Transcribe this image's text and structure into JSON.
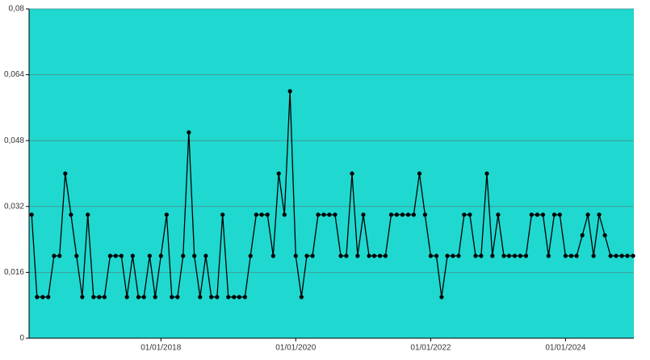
{
  "chart_data": {
    "type": "line",
    "x": [
      "2016-02-01",
      "2016-03-01",
      "2016-04-01",
      "2016-05-01",
      "2016-06-01",
      "2016-07-01",
      "2016-08-01",
      "2016-09-01",
      "2016-10-01",
      "2016-11-01",
      "2016-12-01",
      "2017-01-01",
      "2017-02-01",
      "2017-03-01",
      "2017-04-01",
      "2017-05-01",
      "2017-06-01",
      "2017-07-01",
      "2017-08-01",
      "2017-09-01",
      "2017-10-01",
      "2017-11-01",
      "2017-12-01",
      "2018-01-01",
      "2018-02-01",
      "2018-03-01",
      "2018-04-01",
      "2018-05-01",
      "2018-06-01",
      "2018-07-01",
      "2018-08-01",
      "2018-09-01",
      "2018-10-01",
      "2018-11-01",
      "2018-12-01",
      "2019-01-01",
      "2019-02-01",
      "2019-03-01",
      "2019-04-01",
      "2019-05-01",
      "2019-06-01",
      "2019-07-01",
      "2019-08-01",
      "2019-09-01",
      "2019-10-01",
      "2019-11-01",
      "2019-12-01",
      "2020-01-01",
      "2020-02-01",
      "2020-03-01",
      "2020-04-01",
      "2020-05-01",
      "2020-06-01",
      "2020-07-01",
      "2020-08-01",
      "2020-09-01",
      "2020-10-01",
      "2020-11-01",
      "2020-12-01",
      "2021-01-01",
      "2021-02-01",
      "2021-03-01",
      "2021-04-01",
      "2021-05-01",
      "2021-06-01",
      "2021-07-01",
      "2021-08-01",
      "2021-09-01",
      "2021-10-01",
      "2021-11-01",
      "2021-12-01",
      "2022-01-01",
      "2022-02-01",
      "2022-03-01",
      "2022-04-01",
      "2022-05-01",
      "2022-06-01",
      "2022-07-01",
      "2022-08-01",
      "2022-09-01",
      "2022-10-01",
      "2022-11-01",
      "2022-12-01",
      "2023-01-01",
      "2023-02-01",
      "2023-03-01",
      "2023-04-01",
      "2023-05-01",
      "2023-06-01",
      "2023-07-01",
      "2023-08-01",
      "2023-09-01",
      "2023-10-01",
      "2023-11-01",
      "2023-12-01",
      "2024-01-01",
      "2024-02-01",
      "2024-03-01",
      "2024-04-01",
      "2024-05-01",
      "2024-06-01",
      "2024-07-01",
      "2024-08-01",
      "2024-09-01",
      "2024-10-01",
      "2024-11-01",
      "2024-12-01",
      "2025-01-01"
    ],
    "series": [
      {
        "color": "#000000",
        "values": [
          0.03,
          0.01,
          0.01,
          0.01,
          0.02,
          0.02,
          0.04,
          0.03,
          0.02,
          0.01,
          0.03,
          0.01,
          0.01,
          0.01,
          0.02,
          0.02,
          0.02,
          0.01,
          0.02,
          0.01,
          0.01,
          0.02,
          0.01,
          0.02,
          0.03,
          0.01,
          0.01,
          0.02,
          0.05,
          0.02,
          0.01,
          0.02,
          0.01,
          0.01,
          0.03,
          0.01,
          0.01,
          0.01,
          0.01,
          0.02,
          0.03,
          0.03,
          0.03,
          0.02,
          0.04,
          0.03,
          0.06,
          0.02,
          0.01,
          0.02,
          0.02,
          0.03,
          0.03,
          0.03,
          0.03,
          0.02,
          0.02,
          0.04,
          0.02,
          0.03,
          0.02,
          0.02,
          0.02,
          0.02,
          0.03,
          0.03,
          0.03,
          0.03,
          0.03,
          0.04,
          0.03,
          0.02,
          0.02,
          0.01,
          0.02,
          0.02,
          0.02,
          0.03,
          0.03,
          0.02,
          0.02,
          0.04,
          0.02,
          0.03,
          0.02,
          0.02,
          0.02,
          0.02,
          0.02,
          0.03,
          0.03,
          0.03,
          0.02,
          0.03,
          0.03,
          0.02,
          0.02,
          0.02,
          0.025,
          0.03,
          0.02,
          0.03,
          0.025,
          0.02,
          0.02,
          0.02,
          0.02,
          0.02
        ]
      }
    ],
    "xlim": [
      "2016-01-18",
      "2025-01-05"
    ],
    "xticks": [
      {
        "value": "2018-01-01",
        "label": "01/01/2018"
      },
      {
        "value": "2020-01-01",
        "label": "01/01/2020"
      },
      {
        "value": "2022-01-01",
        "label": "01/01/2022"
      },
      {
        "value": "2024-01-01",
        "label": "01/01/2024"
      }
    ],
    "ylim": [
      0,
      0.08
    ],
    "yticks": [
      0,
      {
        "value": 0.016,
        "label": "0,016"
      },
      {
        "value": 0.032,
        "label": "0,032"
      },
      {
        "value": 0.048,
        "label": "0,048"
      },
      {
        "value": 0.064,
        "label": "0,064"
      },
      {
        "value": 0.08,
        "label": "0,08"
      }
    ],
    "grid": true,
    "background": "#1fd8cf"
  }
}
